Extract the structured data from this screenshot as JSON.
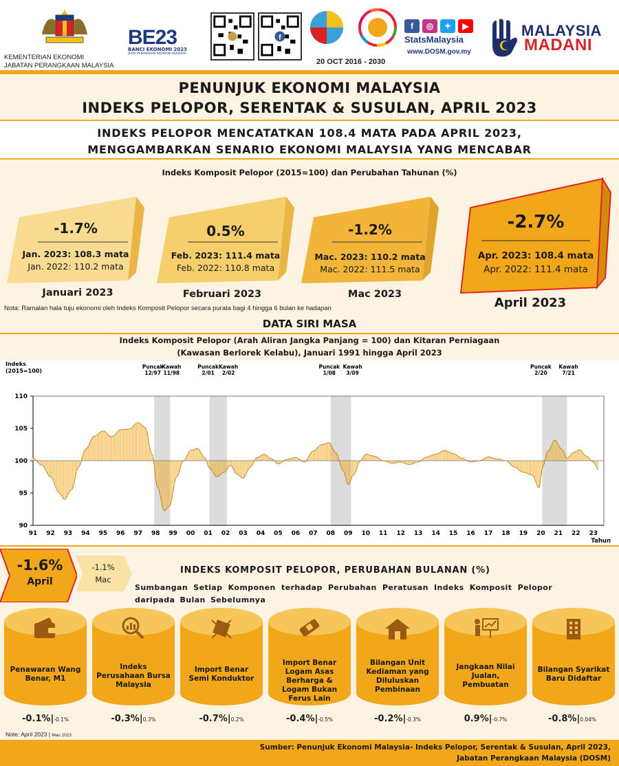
{
  "header": {
    "ministry_line1": "KEMENTERIAN EKONOMI",
    "ministry_line2": "JABATAN PERANGKAAN MALAYSIA",
    "banci_logo": "BE23",
    "banci_label": "BANCI EKONOMI 2023",
    "banci_sublabel": "DATA PEMANGKIN EKONOMI BERDAYA",
    "date_line": "20 OCT  2016 - 2030",
    "stats_name": "StatsMalaysia",
    "website": "www.DOSM.gov.my",
    "madani_line1": "MALAYSIA",
    "madani_line2": "MADANI",
    "social_icons": [
      "facebook-icon",
      "instagram-icon",
      "twitter-icon",
      "youtube-icon"
    ]
  },
  "title": {
    "line1": "PENUNJUK EKONOMI MALAYSIA",
    "line2": "INDEKS PELOPOR, SERENTAK & SUSULAN, APRIL 2023"
  },
  "headline": {
    "line1": "INDEKS PELOPOR MENCATATKAN 108.4 MATA PADA APRIL 2023,",
    "line2": "MENGGAMBARKAN SENARIO EKONOMI MALAYSIA YANG MENCABAR"
  },
  "cards_title": "Indeks Komposit Pelopor (2015=100) dan Perubahan Tahunan (%)",
  "cards": [
    {
      "change": "-1.7%",
      "line1": "Jan. 2023: 108.3 mata",
      "line2": "Jan. 2022: 110.2 mata",
      "label": "Januari 2023"
    },
    {
      "change": "0.5%",
      "line1": "Feb. 2023: 111.4 mata",
      "line2": "Feb. 2022: 110.8 mata",
      "label": "Februari 2023"
    },
    {
      "change": "-1.2%",
      "line1": "Mac. 2023: 110.2 mata",
      "line2": "Mac. 2022: 111.5 mata",
      "label": "Mac 2023"
    },
    {
      "change": "-2.7%",
      "line1": "Apr. 2023: 108.4 mata",
      "line2": "Apr. 2022: 111.4 mata",
      "label": "April 2023"
    }
  ],
  "note1": "Nota: Ramalan hala tuju ekonomi oleh Indeks Komposit Pelopor secara purata bagi 4 hingga 6 bulan ke hadapan",
  "series_section": {
    "title": "DATA SIRI MASA",
    "caption1": "Indeks Komposit Pelopor (Arah Aliran Jangka Panjang  = 100) dan Kitaran Perniagaan",
    "caption2": "(Kawasan Berlorek Kelabu), Januari 1991 hingga April 2023"
  },
  "chart_data": {
    "type": "bar",
    "ylabel": "Indeks (2015=100)",
    "xlabel": "Tahun",
    "ylim": [
      90,
      110
    ],
    "yticks": [
      90,
      95,
      100,
      105,
      110
    ],
    "baseline": 100,
    "x_tick_labels": [
      "91",
      "92",
      "93",
      "94",
      "95",
      "96",
      "97",
      "98",
      "99",
      "00",
      "01",
      "02",
      "03",
      "04",
      "05",
      "06",
      "07",
      "08",
      "09",
      "10",
      "11",
      "12",
      "13",
      "14",
      "15",
      "16",
      "17",
      "18",
      "19",
      "20",
      "21",
      "22",
      "23"
    ],
    "shaded_periods": [
      {
        "start": 1997.92,
        "end": 1998.83,
        "peak_label": "Puncak 12/97",
        "trough_label": "Kawah 11/98"
      },
      {
        "start": 2001.08,
        "end": 2002.08,
        "peak_label": "Puncak 2/01",
        "trough_label": "Kawah 2/02"
      },
      {
        "start": 2008.0,
        "end": 2009.17,
        "peak_label": "Puncak 1/08",
        "trough_label": "Kawah 3/09"
      },
      {
        "start": 2020.08,
        "end": 2021.5,
        "peak_label": "Puncak 2/20",
        "trough_label": "Kawah 7/21"
      }
    ],
    "series_points": [
      [
        1991.0,
        100.4
      ],
      [
        1991.5,
        99.3
      ],
      [
        1992.0,
        97.5
      ],
      [
        1992.5,
        95.0
      ],
      [
        1992.8,
        94.0
      ],
      [
        1993.2,
        95.5
      ],
      [
        1993.6,
        99.0
      ],
      [
        1994.0,
        101.8
      ],
      [
        1994.5,
        103.8
      ],
      [
        1995.0,
        104.6
      ],
      [
        1995.5,
        103.7
      ],
      [
        1996.0,
        104.8
      ],
      [
        1996.5,
        104.9
      ],
      [
        1997.0,
        105.9
      ],
      [
        1997.4,
        105.2
      ],
      [
        1997.8,
        101.0
      ],
      [
        1998.1,
        96.0
      ],
      [
        1998.5,
        92.2
      ],
      [
        1998.8,
        93.0
      ],
      [
        1999.2,
        97.5
      ],
      [
        1999.6,
        100.0
      ],
      [
        2000.0,
        101.6
      ],
      [
        2000.4,
        101.9
      ],
      [
        2000.8,
        100.5
      ],
      [
        2001.1,
        98.8
      ],
      [
        2001.5,
        97.5
      ],
      [
        2001.9,
        98.2
      ],
      [
        2002.3,
        99.3
      ],
      [
        2002.6,
        98.0
      ],
      [
        2003.0,
        97.3
      ],
      [
        2003.4,
        99.0
      ],
      [
        2003.8,
        100.5
      ],
      [
        2004.2,
        101.0
      ],
      [
        2004.6,
        100.3
      ],
      [
        2005.0,
        99.5
      ],
      [
        2005.5,
        100.2
      ],
      [
        2006.0,
        100.5
      ],
      [
        2006.5,
        99.8
      ],
      [
        2007.0,
        101.5
      ],
      [
        2007.5,
        102.5
      ],
      [
        2007.9,
        102.8
      ],
      [
        2008.3,
        101.2
      ],
      [
        2008.7,
        98.5
      ],
      [
        2009.0,
        96.3
      ],
      [
        2009.3,
        97.8
      ],
      [
        2009.7,
        100.0
      ],
      [
        2010.0,
        101.0
      ],
      [
        2010.5,
        100.7
      ],
      [
        2011.0,
        100.0
      ],
      [
        2011.5,
        99.6
      ],
      [
        2012.0,
        99.8
      ],
      [
        2012.5,
        99.4
      ],
      [
        2013.0,
        99.8
      ],
      [
        2013.5,
        100.6
      ],
      [
        2014.0,
        101.0
      ],
      [
        2014.5,
        101.6
      ],
      [
        2015.0,
        101.1
      ],
      [
        2015.5,
        100.4
      ],
      [
        2016.0,
        99.8
      ],
      [
        2016.5,
        100.0
      ],
      [
        2017.0,
        100.6
      ],
      [
        2017.5,
        100.3
      ],
      [
        2018.0,
        100.0
      ],
      [
        2018.5,
        99.0
      ],
      [
        2019.0,
        98.2
      ],
      [
        2019.5,
        97.8
      ],
      [
        2019.9,
        95.8
      ],
      [
        2020.1,
        99.0
      ],
      [
        2020.4,
        101.5
      ],
      [
        2020.8,
        103.2
      ],
      [
        2021.2,
        101.8
      ],
      [
        2021.5,
        100.4
      ],
      [
        2021.9,
        101.3
      ],
      [
        2022.2,
        101.7
      ],
      [
        2022.6,
        100.7
      ],
      [
        2023.0,
        99.8
      ],
      [
        2023.3,
        98.5
      ]
    ]
  },
  "monthly": {
    "april_value": "-1.6%",
    "april_label": "April",
    "mac_value": "-1.1%",
    "mac_label": "Mac",
    "title": "INDEKS KOMPOSIT PELOPOR, PERUBAHAN BULANAN (%)",
    "subtitle1": "Sumbangan Setiap Komponen terhadap Perubahan Peratusan Indeks Komposit Pelopor",
    "subtitle2": "daripada Bulan Sebelumnya",
    "components": [
      {
        "label": "Penawaran Wang Benar, M1",
        "icon": "wallet-icon",
        "apr": "-0.1%",
        "mac": "-0.1%"
      },
      {
        "label": "Indeks Perusahaan Bursa Malaysia",
        "icon": "magnifier-chart-icon",
        "apr": "-0.3%",
        "mac": "0.3%"
      },
      {
        "label": "Import Benar Semi Konduktor",
        "icon": "semiconductor-icon",
        "apr": "-0.7%",
        "mac": "0.2%"
      },
      {
        "label": "Import Benar Logam Asas Berharga & Logam Bukan Ferus Lain",
        "icon": "metal-bar-icon",
        "apr": "-0.4%",
        "mac": "-0.5%"
      },
      {
        "label": "Bilangan Unit Kediaman yang Diluluskan Pembinaan",
        "icon": "house-icon",
        "apr": "-0.2%",
        "mac": "-0.3%"
      },
      {
        "label": "Jangkaan Nilai Jualan, Pembuatan",
        "icon": "presenter-icon",
        "apr": "0.9%",
        "mac": "-0.7%"
      },
      {
        "label": "Bilangan Syarikat Baru Didaftar",
        "icon": "building-icon",
        "apr": "-0.8%",
        "mac": "0.04%"
      }
    ]
  },
  "note2_main": "Note: April 2023",
  "note2_sub": "Mac 2023",
  "footer": {
    "line1": "Sumber: Penunjuk Ekonomi Malaysia- Indeks Pelopor, Serentak & Susulan, April 2023,",
    "line2": "Jabatan Perangkaan Malaysia (DOSM)"
  }
}
